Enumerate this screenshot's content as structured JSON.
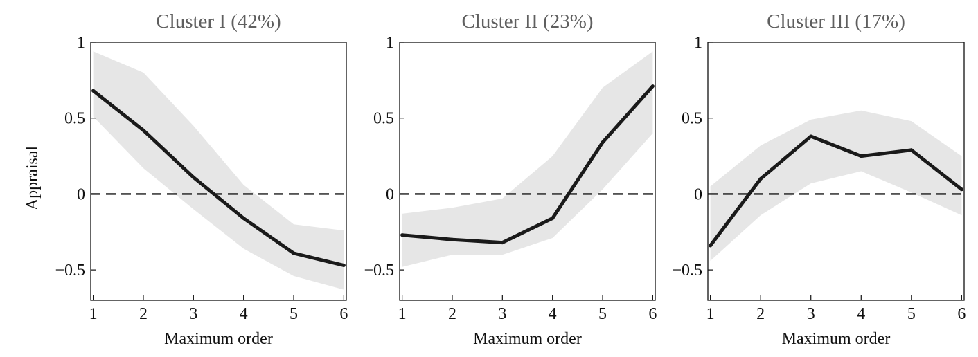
{
  "colors": {
    "band": "#e6e6e6",
    "line": "#1a1a1a",
    "zero_line": "#1a1a1a"
  },
  "chart_data": [
    {
      "type": "line",
      "title": "Cluster I (42%)",
      "xlabel": "Maximum order",
      "ylabel": "Appraisal",
      "x": [
        1,
        2,
        3,
        4,
        5,
        6
      ],
      "xlim": [
        0.95,
        6.05
      ],
      "ylim": [
        -0.7,
        1.0
      ],
      "xticks": [
        1,
        2,
        3,
        4,
        5,
        6
      ],
      "yticks": [
        1,
        0.5,
        0,
        -0.5
      ],
      "ytick_labels": [
        "1",
        "0.5",
        "0",
        "−0.5"
      ],
      "series": [
        {
          "values": [
            0.68,
            0.42,
            0.11,
            -0.16,
            -0.39,
            -0.47
          ],
          "band_upper": [
            0.94,
            0.8,
            0.45,
            0.06,
            -0.2,
            -0.24
          ],
          "band_lower": [
            0.51,
            0.17,
            -0.1,
            -0.36,
            -0.54,
            -0.63
          ]
        }
      ],
      "reference_line": 0
    },
    {
      "type": "line",
      "title": "Cluster II (23%)",
      "xlabel": "Maximum order",
      "ylabel": "",
      "x": [
        1,
        2,
        3,
        4,
        5,
        6
      ],
      "xlim": [
        0.95,
        6.05
      ],
      "ylim": [
        -0.7,
        1.0
      ],
      "xticks": [
        1,
        2,
        3,
        4,
        5,
        6
      ],
      "yticks": [
        1,
        0.5,
        0,
        -0.5
      ],
      "ytick_labels": [
        "1",
        "0.5",
        "0",
        "−0.5"
      ],
      "series": [
        {
          "values": [
            -0.27,
            -0.3,
            -0.32,
            -0.16,
            0.34,
            0.71
          ],
          "band_upper": [
            -0.13,
            -0.09,
            -0.03,
            0.25,
            0.7,
            0.94
          ],
          "band_lower": [
            -0.48,
            -0.4,
            -0.4,
            -0.29,
            0.03,
            0.4
          ]
        }
      ],
      "reference_line": 0
    },
    {
      "type": "line",
      "title": "Cluster III (17%)",
      "xlabel": "Maximum order",
      "ylabel": "",
      "x": [
        1,
        2,
        3,
        4,
        5,
        6
      ],
      "xlim": [
        0.95,
        6.05
      ],
      "ylim": [
        -0.7,
        1.0
      ],
      "xticks": [
        1,
        2,
        3,
        4,
        5,
        6
      ],
      "yticks": [
        1,
        0.5,
        0,
        -0.5
      ],
      "ytick_labels": [
        "1",
        "0.5",
        "0",
        "−0.5"
      ],
      "series": [
        {
          "values": [
            -0.34,
            0.1,
            0.38,
            0.25,
            0.29,
            0.03
          ],
          "band_upper": [
            0.05,
            0.32,
            0.49,
            0.55,
            0.48,
            0.25
          ],
          "band_lower": [
            -0.44,
            -0.14,
            0.07,
            0.15,
            0.01,
            -0.14
          ]
        }
      ],
      "reference_line": 0
    }
  ]
}
